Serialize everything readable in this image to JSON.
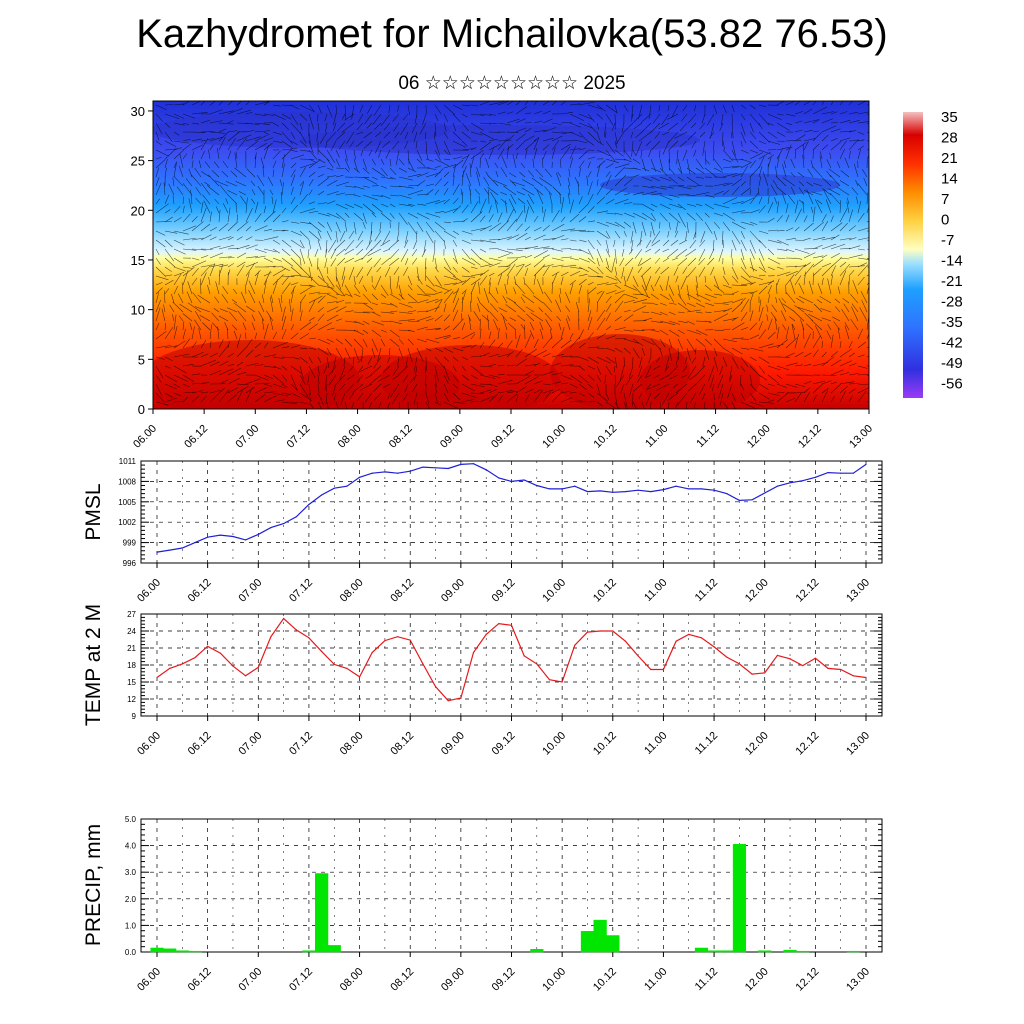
{
  "title": "Kazhydromet for Michailovka(53.82 76.53)",
  "subtitle": "06 ☆☆☆☆☆☆☆☆☆ 2025",
  "colors": {
    "pmsl_line": "#1f1fd6",
    "temp_line": "#e31a1c",
    "precip_bar": "#00e600",
    "grid": "#000000"
  },
  "time_ticks": [
    "06.00",
    "06.12",
    "07.00",
    "07.12",
    "08.00",
    "08.12",
    "09.00",
    "09.12",
    "10.00",
    "10.12",
    "11.00",
    "11.12",
    "12.00",
    "12.12",
    "13.00"
  ],
  "chart_data": [
    {
      "type": "heatmap",
      "name": "cross-section",
      "x_ticks": [
        "06.00",
        "06.12",
        "07.00",
        "07.12",
        "08.00",
        "08.12",
        "09.00",
        "09.12",
        "10.00",
        "10.12",
        "11.00",
        "11.12",
        "12.00",
        "12.12",
        "13.00"
      ],
      "ylim": [
        0,
        31
      ],
      "y_ticks": [
        0,
        5,
        10,
        15,
        20,
        25,
        30
      ],
      "colorbar_labels": [
        "35",
        "28",
        "21",
        "14",
        "7",
        "0",
        "-7",
        "-14",
        "-21",
        "-28",
        "-35",
        "-42",
        "-49",
        "-56"
      ],
      "colorbar_range": [
        -63,
        35
      ],
      "freezing_height": 15,
      "vectors": "wind arrows overlay"
    },
    {
      "type": "line",
      "name": "pmsl",
      "ylabel": "PMSL",
      "ylim": [
        996,
        1011
      ],
      "y_ticks": [
        996,
        999,
        1002,
        1005,
        1008,
        1011
      ],
      "x_ticks": [
        "06.00",
        "06.12",
        "07.00",
        "07.12",
        "08.00",
        "08.12",
        "09.00",
        "09.12",
        "10.00",
        "10.12",
        "11.00",
        "11.12",
        "12.00",
        "12.12",
        "13.00"
      ],
      "x": [
        0,
        3,
        6,
        9,
        12,
        15,
        18,
        21,
        24,
        27,
        30,
        33,
        36,
        39,
        42,
        45,
        48,
        51,
        54,
        57,
        60,
        63,
        66,
        69,
        72,
        75,
        78,
        81,
        84,
        87,
        90,
        93,
        96,
        99,
        102,
        105,
        108,
        111,
        114,
        117,
        120,
        123,
        126,
        129,
        132,
        135,
        138,
        141,
        144,
        147,
        150,
        153,
        156,
        159,
        162,
        165,
        168
      ],
      "values": [
        997.6,
        997.9,
        998.2,
        999.0,
        999.8,
        1000.1,
        999.9,
        999.4,
        1000.2,
        1001.2,
        1001.8,
        1002.8,
        1004.6,
        1006.0,
        1007.0,
        1007.3,
        1008.6,
        1009.2,
        1009.4,
        1009.2,
        1009.5,
        1010.1,
        1010.0,
        1009.9,
        1010.5,
        1010.6,
        1009.7,
        1008.5,
        1008.0,
        1008.2,
        1007.4,
        1006.9,
        1006.9,
        1007.3,
        1006.5,
        1006.6,
        1006.4,
        1006.5,
        1006.7,
        1006.5,
        1006.8,
        1007.3,
        1006.9,
        1006.9,
        1006.7,
        1006.2,
        1005.2,
        1005.3,
        1006.3,
        1007.3,
        1007.8,
        1008.1,
        1008.6,
        1009.3,
        1009.2,
        1009.2,
        1010.5
      ]
    },
    {
      "type": "line",
      "name": "temp2m",
      "ylabel": "TEMP at 2 M",
      "ylim": [
        9,
        27
      ],
      "y_ticks": [
        9,
        12,
        15,
        18,
        21,
        24,
        27
      ],
      "x_ticks": [
        "06.00",
        "06.12",
        "07.00",
        "07.12",
        "08.00",
        "08.12",
        "09.00",
        "09.12",
        "10.00",
        "10.12",
        "11.00",
        "11.12",
        "12.00",
        "12.12",
        "13.00"
      ],
      "x": [
        0,
        3,
        6,
        9,
        12,
        15,
        18,
        21,
        24,
        27,
        30,
        33,
        36,
        39,
        42,
        45,
        48,
        51,
        54,
        57,
        60,
        63,
        66,
        69,
        72,
        75,
        78,
        81,
        84,
        87,
        90,
        93,
        96,
        99,
        102,
        105,
        108,
        111,
        114,
        117,
        120,
        123,
        126,
        129,
        132,
        135,
        138,
        141,
        144,
        147,
        150,
        153,
        156,
        159,
        162,
        165,
        168
      ],
      "values": [
        15.8,
        17.4,
        18.2,
        19.3,
        21.3,
        20.1,
        17.8,
        16.1,
        17.6,
        23.0,
        26.2,
        24.2,
        22.8,
        20.4,
        18.1,
        17.4,
        15.9,
        20.2,
        22.3,
        23.0,
        22.4,
        18.2,
        14.2,
        11.7,
        12.2,
        20.2,
        23.4,
        25.3,
        25.0,
        19.6,
        18.2,
        15.4,
        15.0,
        21.5,
        23.8,
        24.0,
        24.0,
        22.2,
        19.6,
        17.2,
        17.2,
        22.2,
        23.4,
        22.8,
        21.2,
        19.4,
        18.2,
        16.4,
        16.6,
        19.7,
        19.1,
        17.9,
        19.2,
        17.4,
        17.2,
        16.1,
        15.8
      ]
    },
    {
      "type": "bar",
      "name": "precip",
      "ylabel": "PRECIP, mm",
      "ylim": [
        0,
        5
      ],
      "y_ticks": [
        "0.0",
        "1.0",
        "2.0",
        "3.0",
        "4.0",
        "5.0"
      ],
      "x_ticks": [
        "06.00",
        "06.12",
        "07.00",
        "07.12",
        "08.00",
        "08.12",
        "09.00",
        "09.12",
        "10.00",
        "10.12",
        "11.00",
        "11.12",
        "12.00",
        "12.12",
        "13.00"
      ],
      "bar_width_hours": 3,
      "x": [
        0,
        3,
        6,
        9,
        36,
        39,
        42,
        90,
        102,
        105,
        108,
        129,
        132,
        135,
        138,
        144,
        150,
        153,
        165
      ],
      "values": [
        0.15,
        0.12,
        0.05,
        0.03,
        0.05,
        2.95,
        0.25,
        0.1,
        0.78,
        1.2,
        0.62,
        0.15,
        0.05,
        0.05,
        4.05,
        0.05,
        0.07,
        0.03,
        0.03
      ]
    }
  ]
}
